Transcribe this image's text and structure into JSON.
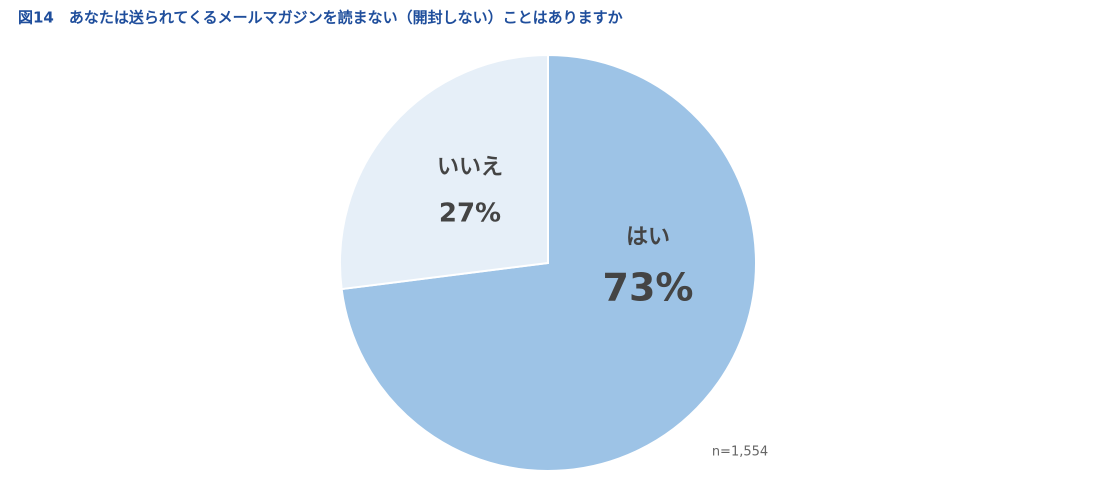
{
  "chart_data": {
    "type": "pie",
    "title": "図14　あなたは送られてくるメールマガジンを読まない（開封しない）ことはありますか",
    "categories": [
      "はい",
      "いいえ"
    ],
    "values": [
      73,
      27
    ],
    "value_labels": [
      "73%",
      "27%"
    ],
    "colors": [
      "#9dc3e6",
      "#e6eff8"
    ],
    "note": "n=1,554"
  }
}
